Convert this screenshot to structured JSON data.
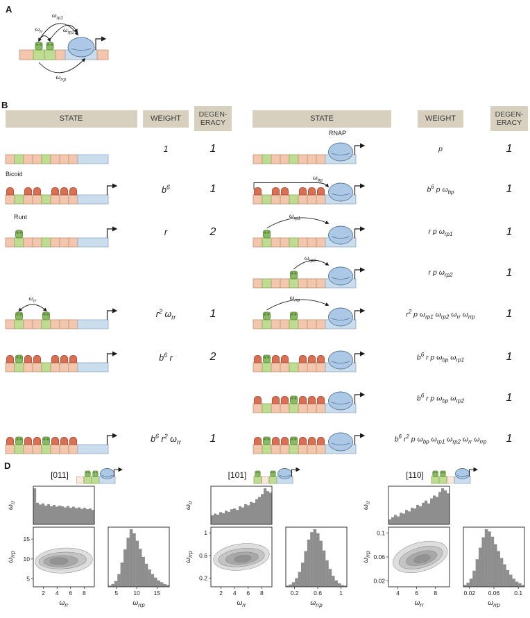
{
  "panels": {
    "a": "A",
    "b": "B",
    "d": "D"
  },
  "colors": {
    "site_bicoid": "#f3c7ad",
    "site_runt": "#bedc92",
    "promoter": "#cadded",
    "bicoid": "#d96f53",
    "runt": "#8abb63",
    "rnap": "#abc8e7",
    "header_bg": "#d7d0bf",
    "hist": "#8e8e8e"
  },
  "arc_labels": {
    "rr": "ω_rr",
    "rp1": "ω_rp1",
    "rp2": "ω_rp2",
    "rrp": "ω_rrp",
    "bp": "ω_bp"
  },
  "panel_b": {
    "headers": {
      "state": "STATE",
      "weight": "WEIGHT",
      "degeneracy": "DEGEN-ERACY"
    },
    "rows": [
      {
        "left": {
          "state": {
            "arrow": false
          },
          "weight": "1",
          "degeneracy": "1"
        },
        "right": {
          "label": "RNAP",
          "state": {
            "rnap": true
          },
          "weight": "p",
          "degeneracy": "1"
        }
      },
      {
        "left": {
          "label": "Bicoid",
          "state": {
            "bicoid": true
          },
          "weight": "b^6",
          "degeneracy": "1"
        },
        "right": {
          "state": {
            "bicoid": true,
            "rnap": true,
            "arc": "bp"
          },
          "weight": "b^6 p ω_bp",
          "degeneracy": "1"
        }
      },
      {
        "left": {
          "label": "Runt",
          "state": {
            "runts": [
              0
            ]
          },
          "weight": "r",
          "degeneracy": "2"
        },
        "right": {
          "state": {
            "runts": [
              0
            ],
            "rnap": true,
            "arc": "rp1"
          },
          "weight": "r p ω_rp1",
          "degeneracy": "1"
        }
      },
      {
        "left": null,
        "right": {
          "state": {
            "runts": [
              1
            ],
            "rnap": true,
            "arc": "rp2"
          },
          "weight": "r p ω_rp2",
          "degeneracy": "1"
        }
      },
      {
        "left": {
          "state": {
            "runts": [
              0,
              1
            ],
            "arc": "rr"
          },
          "weight": "r^2 ω_rr",
          "degeneracy": "1"
        },
        "right": {
          "state": {
            "runts": [
              0,
              1
            ],
            "rnap": true,
            "arc": "rrp"
          },
          "weight": "r^2 p ω_rp1 ω_rp2 ω_rr ω_rrp",
          "degeneracy": "1"
        }
      },
      {
        "left": {
          "state": {
            "bicoid": true,
            "runts": [
              0
            ]
          },
          "weight": "b^6 r",
          "degeneracy": "2"
        },
        "right": {
          "state": {
            "bicoid": true,
            "runts": [
              0
            ],
            "rnap": true
          },
          "weight": "b^6 r p ω_bp ω_rp1",
          "degeneracy": "1"
        }
      },
      {
        "left": null,
        "right": {
          "state": {
            "bicoid": true,
            "runts": [
              1
            ],
            "rnap": true
          },
          "weight": "b^6 r p ω_bp ω_rp2",
          "degeneracy": "1"
        }
      },
      {
        "left": {
          "state": {
            "bicoid": true,
            "runts": [
              0,
              1
            ]
          },
          "weight": "b^6 r^2 ω_rr",
          "degeneracy": "1"
        },
        "right": {
          "state": {
            "bicoid": true,
            "runts": [
              0,
              1
            ],
            "rnap": true
          },
          "weight": "b^6 r^2 p ω_bp ω_rp1 ω_rp2 ω_rr ω_rrp",
          "degeneracy": "1"
        }
      }
    ]
  },
  "chart_data": {
    "type": "corner-plots",
    "plots": [
      {
        "title": "[011]",
        "runt_config": [
          0,
          1,
          1
        ],
        "x_var": "ω_rr",
        "y_var": "ω_rrp",
        "joint": {
          "type": "contour",
          "x_range": [
            0.5,
            9.5
          ],
          "x_ticks": [
            2,
            4,
            6,
            8
          ],
          "y_range": [
            3,
            18
          ],
          "y_ticks": [
            5,
            10,
            15
          ],
          "levels": [
            {
              "cx": 0.5,
              "cy": 0.56,
              "rx": 0.47,
              "ry": 0.21,
              "rot": -3,
              "fill": "#dedede"
            },
            {
              "cx": 0.48,
              "cy": 0.56,
              "rx": 0.39,
              "ry": 0.14,
              "rot": -3,
              "fill": "#c4c4c4"
            },
            {
              "cx": 0.45,
              "cy": 0.57,
              "rx": 0.28,
              "ry": 0.095,
              "rot": -2,
              "fill": "#a8a8a8"
            },
            {
              "cx": 0.42,
              "cy": 0.57,
              "rx": 0.15,
              "ry": 0.06,
              "rot": -2,
              "fill": "#929292"
            }
          ]
        },
        "top_hist": {
          "type": "hist",
          "values": [
            1.0,
            0.6,
            0.55,
            0.58,
            0.52,
            0.56,
            0.5,
            0.54,
            0.49,
            0.52,
            0.5,
            0.47,
            0.51,
            0.46,
            0.49,
            0.45,
            0.47,
            0.43,
            0.46,
            0.42,
            0.44,
            0.4
          ]
        },
        "right_hist": {
          "type": "hist",
          "values": [
            0.02,
            0.05,
            0.1,
            0.22,
            0.42,
            0.65,
            0.85,
            1.0,
            0.93,
            0.8,
            0.66,
            0.52,
            0.4,
            0.3,
            0.22,
            0.16,
            0.11,
            0.08,
            0.05,
            0.03
          ]
        }
      },
      {
        "title": "[101]",
        "runt_config": [
          1,
          0,
          1
        ],
        "x_var": "ω_rr",
        "y_var": "ω_rrp",
        "joint": {
          "type": "contour",
          "x_range": [
            0.5,
            9.5
          ],
          "x_ticks": [
            2,
            4,
            6,
            8
          ],
          "y_range": [
            0.05,
            1.1
          ],
          "y_ticks": [
            0.2,
            0.6,
            1
          ],
          "levels": [
            {
              "cx": 0.5,
              "cy": 0.5,
              "rx": 0.46,
              "ry": 0.22,
              "rot": -7,
              "fill": "#dedede"
            },
            {
              "cx": 0.5,
              "cy": 0.51,
              "rx": 0.38,
              "ry": 0.15,
              "rot": -7,
              "fill": "#c4c4c4"
            },
            {
              "cx": 0.51,
              "cy": 0.52,
              "rx": 0.27,
              "ry": 0.1,
              "rot": -6,
              "fill": "#a8a8a8"
            },
            {
              "cx": 0.52,
              "cy": 0.53,
              "rx": 0.14,
              "ry": 0.06,
              "rot": -6,
              "fill": "#929292"
            }
          ]
        },
        "top_hist": {
          "type": "hist",
          "values": [
            0.25,
            0.3,
            0.27,
            0.34,
            0.31,
            0.38,
            0.35,
            0.42,
            0.44,
            0.4,
            0.5,
            0.47,
            0.56,
            0.53,
            0.62,
            0.6,
            0.7,
            0.76,
            0.84,
            1.0,
            0.92,
            0.88
          ]
        },
        "right_hist": {
          "type": "hist",
          "values": [
            0.02,
            0.04,
            0.08,
            0.15,
            0.26,
            0.42,
            0.62,
            0.82,
            0.95,
            1.0,
            0.93,
            0.8,
            0.63,
            0.46,
            0.31,
            0.19,
            0.11,
            0.06,
            0.03,
            0.02
          ]
        }
      },
      {
        "title": "[110]",
        "runt_config": [
          1,
          1,
          0
        ],
        "x_var": "ω_rr",
        "y_var": "ω_rrp",
        "joint": {
          "type": "contour",
          "x_range": [
            3,
            9.5
          ],
          "x_ticks": [
            4,
            6,
            8
          ],
          "y_range": [
            0.01,
            0.11
          ],
          "y_ticks": [
            0.02,
            0.06,
            0.1
          ],
          "levels": [
            {
              "cx": 0.52,
              "cy": 0.5,
              "rx": 0.46,
              "ry": 0.24,
              "rot": -16,
              "fill": "#dedede"
            },
            {
              "cx": 0.53,
              "cy": 0.51,
              "rx": 0.37,
              "ry": 0.17,
              "rot": -16,
              "fill": "#c4c4c4"
            },
            {
              "cx": 0.54,
              "cy": 0.52,
              "rx": 0.26,
              "ry": 0.11,
              "rot": -15,
              "fill": "#a8a8a8"
            },
            {
              "cx": 0.55,
              "cy": 0.53,
              "rx": 0.14,
              "ry": 0.065,
              "rot": -15,
              "fill": "#929292"
            }
          ]
        },
        "top_hist": {
          "type": "hist",
          "values": [
            0.14,
            0.2,
            0.26,
            0.22,
            0.32,
            0.3,
            0.4,
            0.36,
            0.46,
            0.44,
            0.54,
            0.5,
            0.6,
            0.66,
            0.58,
            0.72,
            0.8,
            0.76,
            0.9,
            1.0,
            0.94,
            0.86
          ]
        },
        "right_hist": {
          "type": "hist",
          "values": [
            0.03,
            0.07,
            0.14,
            0.28,
            0.48,
            0.68,
            0.86,
            1.0,
            0.96,
            0.87,
            0.74,
            0.62,
            0.5,
            0.39,
            0.29,
            0.21,
            0.14,
            0.09,
            0.06,
            0.03
          ]
        }
      }
    ]
  }
}
